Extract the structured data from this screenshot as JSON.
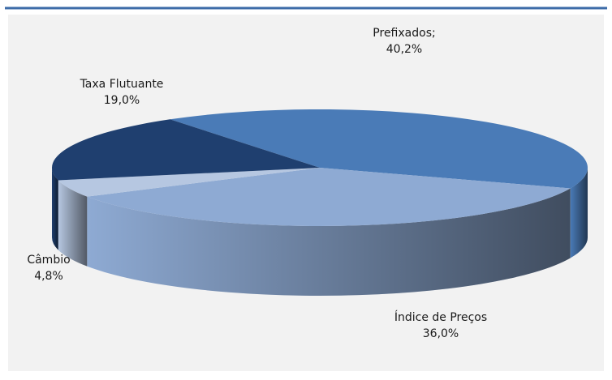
{
  "chart_data": {
    "type": "pie",
    "categories": [
      "Prefixados;",
      "Índice de Preços",
      "Câmbio",
      "Taxa Flutuante"
    ],
    "values": [
      40.2,
      36.0,
      4.8,
      19.0
    ],
    "value_labels": [
      "40,2%",
      "36,0%",
      "4,8%",
      "19,0%"
    ],
    "colors": [
      "#4a7bb7",
      "#8eaad3",
      "#b6c7e1",
      "#1f3f6f"
    ],
    "three_d": true
  }
}
